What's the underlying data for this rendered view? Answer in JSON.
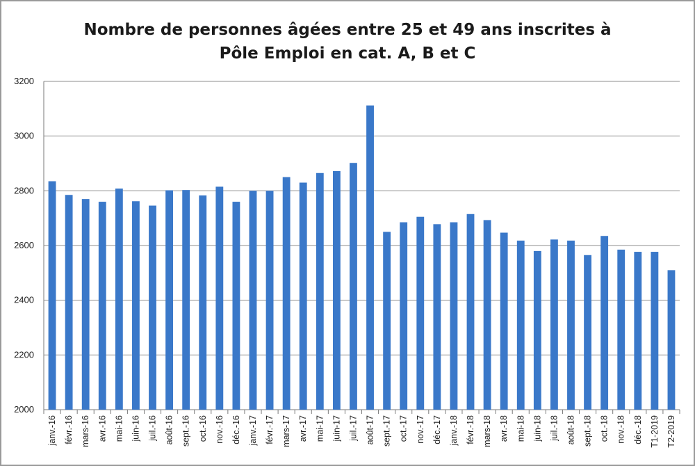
{
  "chart_data": {
    "type": "bar",
    "title_line1": "Nombre de personnes âgées entre 25 et 49 ans inscrites à",
    "title_line2": "Pôle Emploi en cat. A, B et C",
    "xlabel": "",
    "ylabel": "",
    "ylim": [
      2000,
      3200
    ],
    "yticks": [
      2000,
      2200,
      2400,
      2600,
      2800,
      3000,
      3200
    ],
    "grid": true,
    "legend": "none",
    "bar_color": "#3a78c9",
    "categories": [
      "janv.-16",
      "févr.-16",
      "mars-16",
      "avr.-16",
      "mai-16",
      "juin-16",
      "juil.-16",
      "août-16",
      "sept.-16",
      "oct.-16",
      "nov.-16",
      "déc.-16",
      "janv.-17",
      "févr.-17",
      "mars-17",
      "avr.-17",
      "mai-17",
      "juin-17",
      "juil.-17",
      "août-17",
      "sept.-17",
      "oct.-17",
      "nov.-17",
      "déc.-17",
      "janv.-18",
      "févr.-18",
      "mars-18",
      "avr.-18",
      "mai-18",
      "juin-18",
      "juil.-18",
      "août-18",
      "sept.-18",
      "oct.-18",
      "nov.-18",
      "déc.-18",
      "T1-2019",
      "T2-2019"
    ],
    "values": [
      2835,
      2785,
      2770,
      2760,
      2808,
      2762,
      2746,
      2802,
      2803,
      2783,
      2815,
      2760,
      2800,
      2800,
      2850,
      2830,
      2865,
      2872,
      2902,
      3112,
      2650,
      2685,
      2705,
      2678,
      2685,
      2715,
      2693,
      2647,
      2618,
      2580,
      2622,
      2618,
      2565,
      2635,
      2585,
      2577,
      2577,
      2510
    ]
  }
}
